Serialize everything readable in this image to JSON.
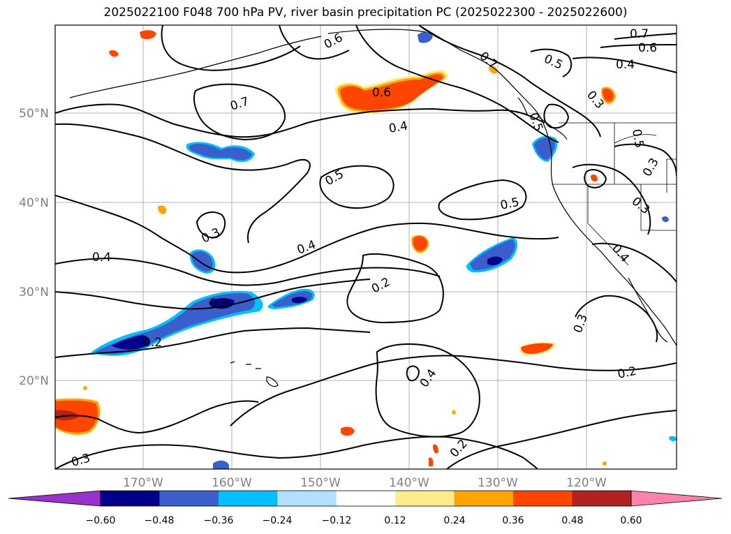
{
  "title": "2025022100 F048 700 hPa PV, river basin precipitation PC (2025022300 - 2025022600)",
  "map": {
    "lat_labels": [
      "50°N",
      "40°N",
      "30°N",
      "20°N"
    ],
    "lon_labels": [
      "170°W",
      "160°W",
      "150°W",
      "140°W",
      "130°W",
      "120°W"
    ],
    "contour_labels": [
      "0.7",
      "0.6",
      "0.5",
      "0.4",
      "0.3",
      "0.2"
    ]
  },
  "colorbar": {
    "ticks": [
      "−0.60",
      "−0.48",
      "−0.36",
      "−0.24",
      "−0.12",
      "0.12",
      "0.24",
      "0.36",
      "0.48",
      "0.60"
    ],
    "colors": [
      "#9932cc",
      "#00008b",
      "#3a5fcd",
      "#00bfff",
      "#b0e2ff",
      "#ffffff",
      "#ffec8b",
      "#ffa500",
      "#ff4500",
      "#b22222",
      "#ff82ab"
    ]
  }
}
